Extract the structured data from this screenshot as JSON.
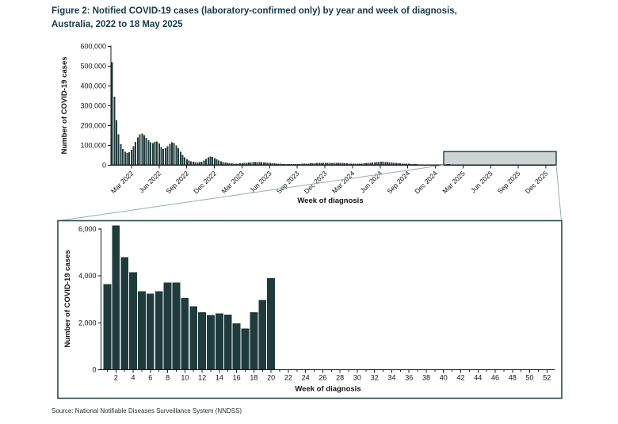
{
  "title": {
    "line1": "Figure 2: Notified COVID-19 cases (laboratory-confirmed only) by year and week of diagnosis,",
    "line2": "Australia, 2022 to 18 May 2025"
  },
  "source": "Source: National Notifiable Diseases Surveillance System (NNDSS)",
  "colors": {
    "bar": "#1f3b3c",
    "title_text": "#17394a",
    "axis": "#1a1a1a",
    "highlight_fill": "#ccd4d4",
    "highlight_stroke": "#2c4a4e",
    "panel_stroke": "#2c4a4e",
    "connector": "#95aeae"
  },
  "chart_data": [
    {
      "id": "overview",
      "type": "bar",
      "title": "",
      "xlabel": "Week of diagnosis",
      "ylabel": "Number of COVID-19 cases",
      "ylim": [
        0,
        600000
      ],
      "yticks": [
        0,
        100000,
        200000,
        300000,
        400000,
        500000,
        600000
      ],
      "ytick_labels": [
        "0",
        "100,000",
        "200,000",
        "300,000",
        "400,000",
        "500,000",
        "600,000"
      ],
      "xtick_labels": [
        "Mar 2022",
        "Jun 2022",
        "Sep 2022",
        "Dec 2022",
        "Mar 2023",
        "Jun 2023",
        "Sep 2023",
        "Dec 2023",
        "Mar 2024",
        "Jun 2024",
        "Sep 2024",
        "Dec 2024",
        "Mar 2025",
        "Jun 2025",
        "Sep 2025",
        "Dec 2025"
      ],
      "grid": false,
      "legend": "none",
      "note": "weekly notified COVID-19 case counts, estimated from bar heights",
      "series_by_year": {
        "2022": [
          520000,
          345000,
          228000,
          155000,
          105000,
          82000,
          68000,
          62000,
          65000,
          78000,
          95000,
          118000,
          140000,
          155000,
          160000,
          152000,
          138000,
          125000,
          115000,
          112000,
          118000,
          120000,
          110000,
          92000,
          82000,
          85000,
          95000,
          108000,
          115000,
          112000,
          100000,
          85000,
          68000,
          52000,
          40000,
          30000,
          24000,
          20000,
          17000,
          15000,
          14000,
          15000,
          18000,
          24000,
          32000,
          40000,
          44000,
          42000,
          36000,
          30000,
          24000,
          20000
        ],
        "2023": [
          16000,
          14000,
          12000,
          10000,
          9000,
          8000,
          8000,
          8000,
          9000,
          10000,
          11000,
          12000,
          13000,
          14000,
          15000,
          16000,
          16000,
          15000,
          15000,
          14000,
          13000,
          12000,
          11000,
          10000,
          9000,
          8000,
          7000,
          7000,
          6000,
          6000,
          6000,
          6000,
          6000,
          6000,
          6000,
          6000,
          6000,
          7000,
          7000,
          8000,
          8000,
          9000,
          9000,
          10000,
          11000,
          12000,
          12000,
          12000,
          12000,
          11000,
          11000,
          10000
        ],
        "2024": [
          11000,
          11000,
          12000,
          12000,
          11000,
          10000,
          9000,
          8000,
          8000,
          7000,
          7000,
          7000,
          8000,
          8000,
          9000,
          10000,
          11000,
          12000,
          13000,
          14000,
          15000,
          16000,
          17000,
          17000,
          16000,
          15000,
          14000,
          13000,
          12000,
          11000,
          10000,
          9000,
          8000,
          8000,
          7000,
          7000,
          6000,
          6000,
          5000,
          5000,
          4000,
          4000,
          4000,
          4000,
          3000,
          3000,
          3000,
          3000,
          3000,
          3000,
          3000,
          3000
        ],
        "2025": [
          3650,
          6150,
          4800,
          4150,
          3350,
          3250,
          3350,
          3720,
          3720,
          3060,
          2700,
          2450,
          2330,
          2400,
          2350,
          1980,
          1750,
          2450,
          2980,
          3900
        ]
      },
      "highlight_region": {
        "from": "Jan 2025",
        "to": "Dec 2025"
      }
    },
    {
      "id": "inset-2025",
      "type": "bar",
      "title": "",
      "xlabel": "Week of diagnosis",
      "ylabel": "Number of COVID-19 cases",
      "ylim": [
        0,
        6400
      ],
      "yticks": [
        0,
        2000,
        4000,
        6000
      ],
      "ytick_labels": [
        "0",
        "2,000",
        "4,000",
        "6,000"
      ],
      "xticks": [
        2,
        4,
        6,
        8,
        10,
        12,
        14,
        16,
        18,
        20,
        22,
        24,
        26,
        28,
        30,
        32,
        34,
        36,
        38,
        40,
        42,
        44,
        46,
        48,
        50,
        52
      ],
      "week_range": [
        1,
        52
      ],
      "weeks": [
        1,
        2,
        3,
        4,
        5,
        6,
        7,
        8,
        9,
        10,
        11,
        12,
        13,
        14,
        15,
        16,
        17,
        18,
        19,
        20
      ],
      "values": [
        3650,
        6150,
        4800,
        4150,
        3350,
        3250,
        3350,
        3720,
        3720,
        3060,
        2700,
        2450,
        2330,
        2400,
        2350,
        1980,
        1750,
        2450,
        2980,
        3900
      ]
    }
  ]
}
